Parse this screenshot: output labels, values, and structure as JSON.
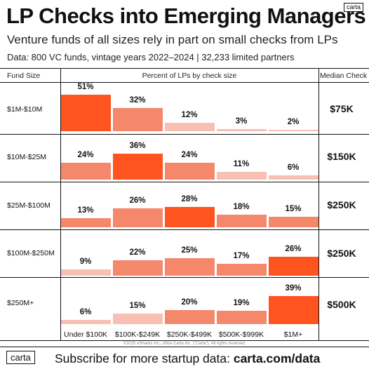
{
  "header": {
    "title": "LP Checks into Emerging Managers",
    "logo": "carta",
    "subtitle": "Venture funds of all sizes rely in part on small checks from LPs",
    "data_note": "Data: 800 VC funds, vintage years 2022–2024 | 32,233 limited partners"
  },
  "columns": {
    "fund_size": "Fund Size",
    "percent": "Percent of LPs by check size",
    "median": "Median Check"
  },
  "colors": {
    "high": "#ff5320",
    "mid": "#f5876b",
    "low": "#f7c0b3"
  },
  "chart_data": {
    "type": "bar",
    "title": "LP Checks into Emerging Managers",
    "subtitle": "Venture funds of all sizes rely in part on small checks from LPs",
    "xlabel": "",
    "ylabel": "Percent of LPs by check size",
    "categories": [
      "Under $100K",
      "$100K-$249K",
      "$250K-$499K",
      "$500K-$999K",
      "$1M+"
    ],
    "ylim": [
      0,
      51
    ],
    "series": [
      {
        "name": "$1M-$10M",
        "values": [
          51,
          32,
          12,
          3,
          2
        ],
        "labels": [
          "51%",
          "32%",
          "12%",
          "3%",
          "2%"
        ],
        "median": "$75K"
      },
      {
        "name": "$10M-$25M",
        "values": [
          24,
          36,
          24,
          11,
          6
        ],
        "labels": [
          "24%",
          "36%",
          "24%",
          "11%",
          "6%"
        ],
        "median": "$150K"
      },
      {
        "name": "$25M-$100M",
        "values": [
          13,
          26,
          28,
          18,
          15
        ],
        "labels": [
          "13%",
          "26%",
          "28%",
          "18%",
          "15%"
        ],
        "median": "$250K"
      },
      {
        "name": "$100M-$250M",
        "values": [
          9,
          22,
          25,
          17,
          26
        ],
        "labels": [
          "9%",
          "22%",
          "25%",
          "17%",
          "26%"
        ],
        "median": "$250K"
      },
      {
        "name": "$250M+",
        "values": [
          6,
          15,
          20,
          19,
          39
        ],
        "labels": [
          "6%",
          "15%",
          "20%",
          "19%",
          "39%"
        ],
        "median": "$500K"
      }
    ]
  },
  "footer": {
    "copyright": "©2025 eShares Inc., d/b/a Carta Inc. (\"Carta\"). All rights reserved.",
    "logo": "carta",
    "cta_prefix": "Subscribe for more startup data: ",
    "cta_link": "carta.com/data"
  }
}
